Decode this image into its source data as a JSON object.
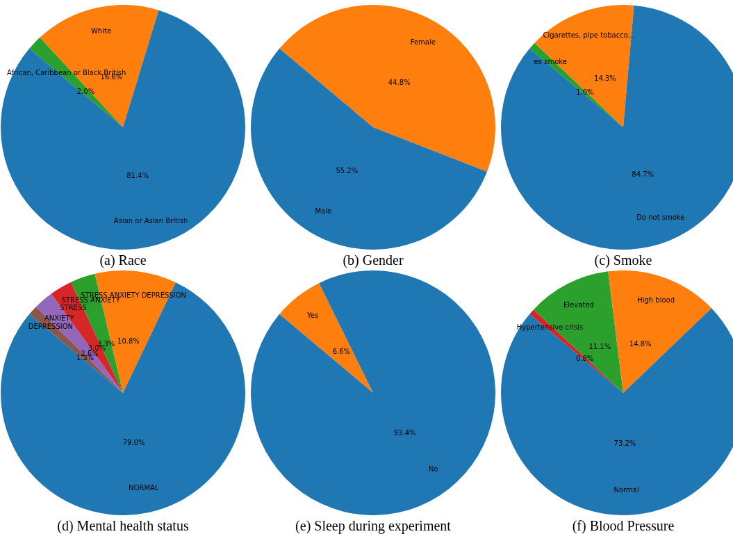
{
  "chart_data": [
    {
      "type": "pie",
      "title": "(a) Race",
      "categories": [
        "Asian or Asian British",
        "White",
        "African, Caribbean or Black British"
      ],
      "values": [
        81.4,
        16.6,
        2.0
      ],
      "value_labels": [
        "81.4%",
        "16.6%",
        "2.0%"
      ],
      "colors": [
        "#1f77b4",
        "#ff7f0e",
        "#2ca02c"
      ],
      "legend": false
    },
    {
      "type": "pie",
      "title": "(b) Gender",
      "categories": [
        "Male",
        "Female"
      ],
      "values": [
        55.2,
        44.8
      ],
      "value_labels": [
        "55.2%",
        "44.8%"
      ],
      "colors": [
        "#1f77b4",
        "#ff7f0e"
      ],
      "legend": false
    },
    {
      "type": "pie",
      "title": "(c) Smoke",
      "categories": [
        "Do not smoke",
        "Cigarettes, pipe tobacco...",
        "ex smoke"
      ],
      "values": [
        84.7,
        14.3,
        1.0
      ],
      "value_labels": [
        "84.7%",
        "14.3%",
        "1.0%"
      ],
      "colors": [
        "#1f77b4",
        "#ff7f0e",
        "#2ca02c"
      ],
      "legend": false
    },
    {
      "type": "pie",
      "title": "(d) Mental health status",
      "categories": [
        "NORMAL",
        "STRESS ANXIETY DEPRESSION",
        "STRESS ANXIETY",
        "STRESS",
        "ANXIETY",
        "DEPRESSION"
      ],
      "values": [
        79.0,
        10.8,
        3.3,
        3.0,
        2.6,
        1.3
      ],
      "value_labels": [
        "79.0%",
        "10.8%",
        "3.3%",
        "3.0%",
        "2.6%",
        "1.3%"
      ],
      "colors": [
        "#1f77b4",
        "#ff7f0e",
        "#2ca02c",
        "#d62728",
        "#9467bd",
        "#8c564b"
      ],
      "legend": false
    },
    {
      "type": "pie",
      "title": "(e) Sleep during experiment",
      "categories": [
        "No",
        "Yes"
      ],
      "values": [
        93.4,
        6.6
      ],
      "value_labels": [
        "93.4%",
        "6.6%"
      ],
      "colors": [
        "#1f77b4",
        "#ff7f0e"
      ],
      "legend": false
    },
    {
      "type": "pie",
      "title": "(f) Blood Pressure",
      "categories": [
        "Normal",
        "High blood",
        "Elevated",
        "Hypertensive crisis"
      ],
      "values": [
        73.2,
        14.8,
        11.1,
        0.8
      ],
      "value_labels": [
        "73.2%",
        "14.8%",
        "11.1%",
        "0.8%"
      ],
      "colors": [
        "#1f77b4",
        "#ff7f0e",
        "#2ca02c",
        "#d62728"
      ],
      "legend": false
    }
  ]
}
